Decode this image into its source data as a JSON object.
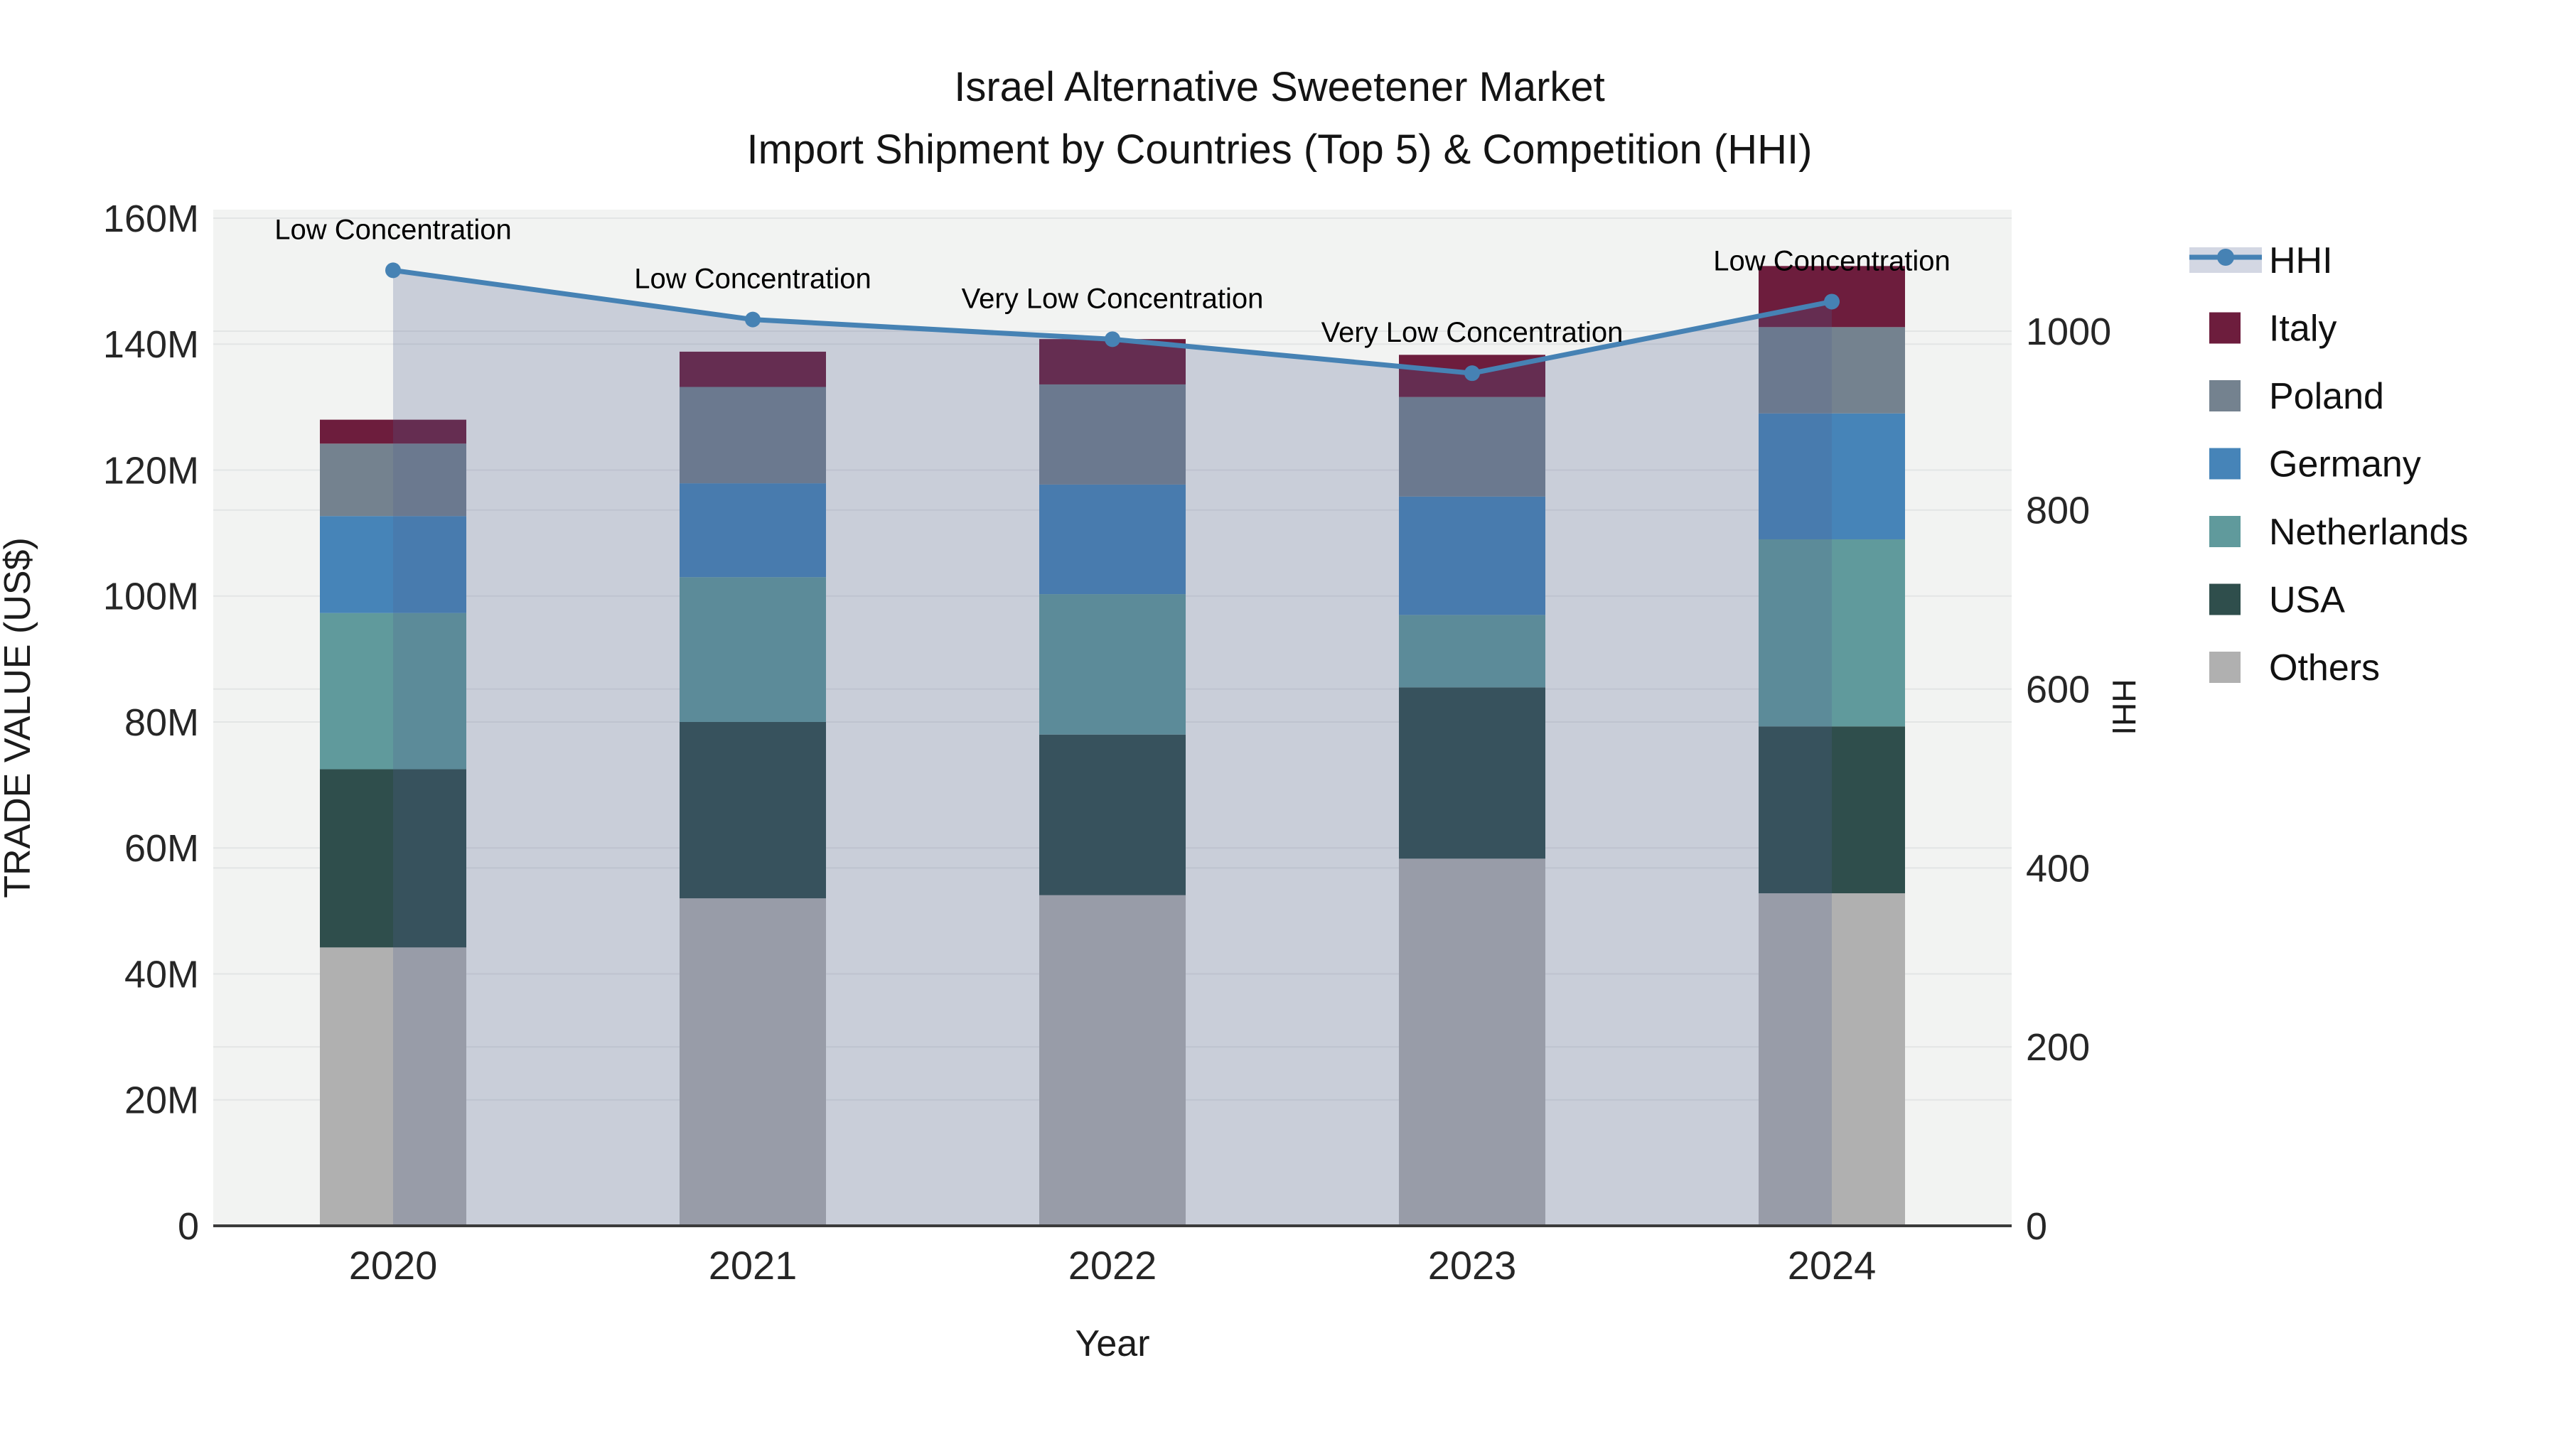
{
  "title": {
    "line1": "Israel Alternative Sweetener Market",
    "line2": "Import Shipment by Countries (Top 5) & Competition (HHI)"
  },
  "chart_data": {
    "type": "combo",
    "subtype": [
      "stacked-bar",
      "line",
      "area"
    ],
    "title": "Israel Alternative Sweetener Market — Import Shipment by Countries (Top 5) & Competition (HHI)",
    "categories": [
      "2020",
      "2021",
      "2022",
      "2023",
      "2024"
    ],
    "x_axis": {
      "label": "Year"
    },
    "y_axis_left": {
      "label": "TRADE VALUE (US$)",
      "ticks": [
        "0",
        "20M",
        "40M",
        "60M",
        "80M",
        "100M",
        "120M",
        "140M",
        "160M"
      ],
      "tick_values": [
        0,
        20,
        40,
        60,
        80,
        100,
        120,
        140,
        160
      ],
      "unit": "million US$",
      "range": [
        0,
        160
      ],
      "grid": true
    },
    "y_axis_right": {
      "label": "HHI",
      "ticks": [
        "0",
        "200",
        "400",
        "600",
        "800",
        "1000"
      ],
      "tick_values": [
        0,
        200,
        400,
        600,
        800,
        1000
      ],
      "range": [
        0,
        1000
      ],
      "grid": true
    },
    "bar_series": [
      {
        "name": "Italy",
        "color": "#6d1d3d",
        "values": [
          3.8,
          5.6,
          7.2,
          6.7,
          9.7
        ]
      },
      {
        "name": "Poland",
        "color": "#74828f",
        "values": [
          11.5,
          15.3,
          15.9,
          15.8,
          13.7
        ]
      },
      {
        "name": "Germany",
        "color": "#4684b8",
        "values": [
          15.4,
          14.9,
          17.4,
          18.8,
          20.0
        ]
      },
      {
        "name": "Netherlands",
        "color": "#609a9c",
        "values": [
          24.8,
          23.0,
          22.3,
          11.5,
          29.7
        ]
      },
      {
        "name": "USA",
        "color": "#2f4e4c",
        "values": [
          28.3,
          28.0,
          25.5,
          27.2,
          26.5
        ]
      },
      {
        "name": "Others",
        "color": "#b0b0b0",
        "values": [
          44.2,
          52.0,
          52.5,
          58.3,
          52.8
        ]
      }
    ],
    "bar_stack_order_bottom_to_top": [
      "Others",
      "USA",
      "Netherlands",
      "Germany",
      "Poland",
      "Italy"
    ],
    "bar_totals_musd": [
      128.0,
      138.8,
      140.8,
      138.3,
      152.4
    ],
    "line_series": {
      "name": "HHI",
      "color": "#4682b4",
      "area_fill": "rgba(78,94,142,0.25)",
      "values": [
        1068,
        1013,
        991,
        953,
        1033
      ],
      "annotations": [
        "Low Concentration",
        "Low Concentration",
        "Very Low Concentration",
        "Very Low Concentration",
        "Low Concentration"
      ]
    },
    "legend": {
      "position": "right",
      "items": [
        "HHI",
        "Italy",
        "Poland",
        "Germany",
        "Netherlands",
        "USA",
        "Others"
      ]
    },
    "colors": {
      "plot_background": "#f2f3f2",
      "figure_background": "#ffffff",
      "gridline": "#e3e5e5",
      "axis_line": "#3b3b3b",
      "hhi_legend_band": "#d3d7e3"
    }
  }
}
